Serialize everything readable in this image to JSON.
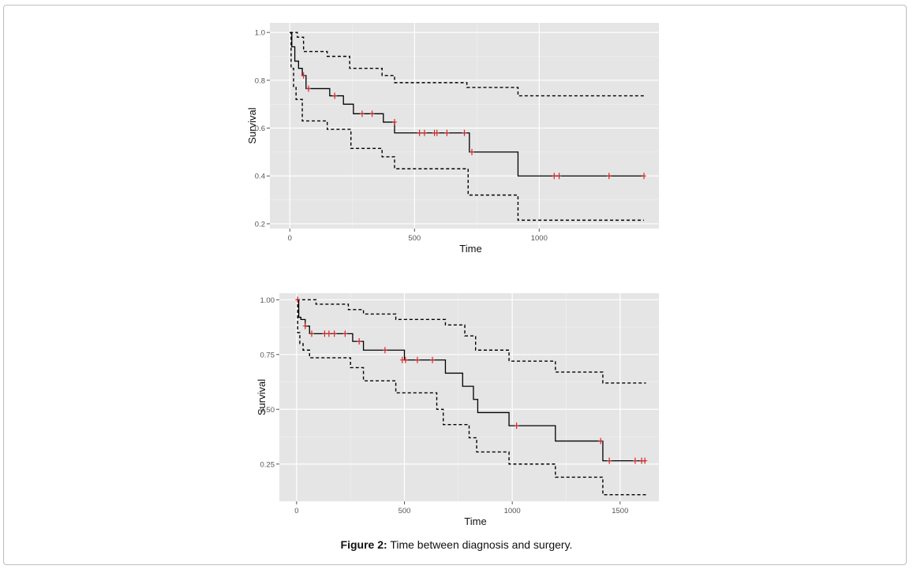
{
  "chart_data": [
    {
      "type": "line",
      "subtype": "kaplan-meier",
      "xlabel": "Time",
      "ylabel": "Survival",
      "xlim": [
        -80,
        1480
      ],
      "ylim": [
        0.18,
        1.04
      ],
      "xticks": [
        0,
        500,
        1000
      ],
      "xtick_labels": [
        "0",
        "500",
        "1000"
      ],
      "yticks": [
        0.2,
        0.4,
        0.6,
        0.8,
        1.0
      ],
      "ytick_labels": [
        "0.2",
        "0.4",
        "0.6",
        "0.8",
        "1.0"
      ],
      "background": "#e5e5e5",
      "series": [
        {
          "name": "survival",
          "style": "solid",
          "color": "#000000",
          "x": [
            0,
            8,
            20,
            35,
            50,
            65,
            160,
            215,
            255,
            310,
            375,
            420,
            720,
            915,
            1420
          ],
          "y": [
            1.0,
            0.94,
            0.88,
            0.85,
            0.82,
            0.765,
            0.735,
            0.7,
            0.66,
            0.66,
            0.625,
            0.58,
            0.5,
            0.4,
            0.4
          ]
        },
        {
          "name": "upper CI",
          "style": "dashed",
          "color": "#000000",
          "x": [
            0,
            30,
            55,
            150,
            240,
            370,
            420,
            710,
            915,
            1420
          ],
          "y": [
            1.0,
            0.98,
            0.92,
            0.9,
            0.85,
            0.82,
            0.79,
            0.77,
            0.735,
            0.735
          ]
        },
        {
          "name": "lower CI",
          "style": "dashed",
          "color": "#000000",
          "x": [
            0,
            5,
            15,
            25,
            50,
            150,
            245,
            370,
            420,
            715,
            915,
            1420
          ],
          "y": [
            1.0,
            0.85,
            0.77,
            0.72,
            0.63,
            0.595,
            0.515,
            0.48,
            0.43,
            0.32,
            0.215,
            0.215
          ]
        }
      ],
      "censored": {
        "color": "#d62728",
        "x": [
          55,
          75,
          180,
          290,
          330,
          420,
          520,
          540,
          580,
          590,
          630,
          700,
          730,
          1060,
          1080,
          1280,
          1420
        ],
        "y": [
          0.82,
          0.765,
          0.735,
          0.66,
          0.66,
          0.625,
          0.58,
          0.58,
          0.58,
          0.58,
          0.58,
          0.58,
          0.5,
          0.4,
          0.4,
          0.4,
          0.4
        ]
      }
    },
    {
      "type": "line",
      "subtype": "kaplan-meier",
      "xlabel": "Time",
      "ylabel": "Survival",
      "xlim": [
        -80,
        1680
      ],
      "ylim": [
        0.08,
        1.03
      ],
      "xticks": [
        0,
        500,
        1000,
        1500
      ],
      "xtick_labels": [
        "0",
        "500",
        "1000",
        "1500"
      ],
      "yticks": [
        0.25,
        0.5,
        0.75,
        1.0
      ],
      "ytick_labels": [
        "0.25",
        "0.50",
        "0.75",
        "1.00"
      ],
      "background": "#e5e5e5",
      "series": [
        {
          "name": "survival",
          "style": "solid",
          "color": "#000000",
          "x": [
            0,
            10,
            20,
            40,
            60,
            260,
            310,
            420,
            500,
            690,
            770,
            820,
            840,
            985,
            1200,
            1420,
            1620
          ],
          "y": [
            1.0,
            0.92,
            0.91,
            0.88,
            0.845,
            0.81,
            0.77,
            0.77,
            0.725,
            0.665,
            0.605,
            0.545,
            0.485,
            0.425,
            0.355,
            0.265,
            0.265
          ]
        },
        {
          "name": "upper CI",
          "style": "dashed",
          "color": "#000000",
          "x": [
            0,
            90,
            240,
            310,
            460,
            690,
            780,
            830,
            985,
            1200,
            1420,
            1620
          ],
          "y": [
            1.0,
            0.98,
            0.955,
            0.935,
            0.91,
            0.885,
            0.835,
            0.77,
            0.72,
            0.67,
            0.62,
            0.62
          ]
        },
        {
          "name": "lower CI",
          "style": "dashed",
          "color": "#000000",
          "x": [
            0,
            5,
            15,
            30,
            60,
            250,
            310,
            460,
            650,
            680,
            800,
            835,
            985,
            1200,
            1420,
            1620
          ],
          "y": [
            1.0,
            0.85,
            0.8,
            0.77,
            0.735,
            0.69,
            0.63,
            0.575,
            0.5,
            0.43,
            0.37,
            0.305,
            0.25,
            0.19,
            0.11,
            0.11
          ]
        }
      ],
      "censored": {
        "color": "#d62728",
        "x": [
          5,
          40,
          70,
          130,
          150,
          175,
          225,
          290,
          410,
          490,
          505,
          560,
          630,
          1020,
          1410,
          1450,
          1570,
          1600,
          1615
        ],
        "y": [
          1.0,
          0.88,
          0.845,
          0.845,
          0.845,
          0.845,
          0.845,
          0.81,
          0.77,
          0.725,
          0.725,
          0.725,
          0.725,
          0.425,
          0.355,
          0.265,
          0.265,
          0.265,
          0.265
        ]
      }
    }
  ],
  "caption": {
    "label": "Figure 2:",
    "text": "Time between diagnosis and surgery."
  }
}
